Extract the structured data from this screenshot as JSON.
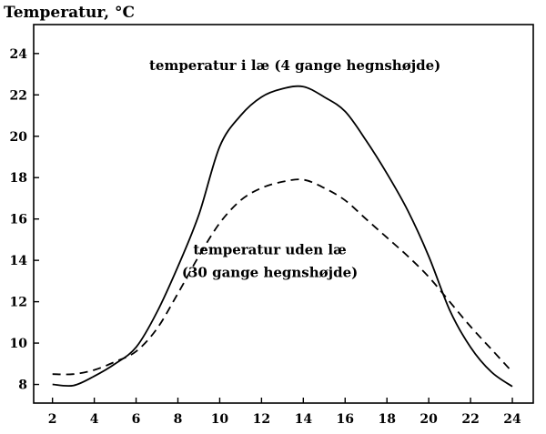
{
  "chart_data": {
    "type": "line",
    "title": "Temperatur, °C",
    "xlabel": "",
    "ylabel": "Temperatur, °C",
    "xlim": [
      1.1,
      25.0
    ],
    "ylim": [
      7.1,
      25.4
    ],
    "xticks": [
      2,
      4,
      6,
      8,
      10,
      12,
      14,
      16,
      18,
      20,
      22,
      24
    ],
    "yticks": [
      8,
      10,
      12,
      14,
      16,
      18,
      20,
      22,
      24
    ],
    "grid": false,
    "legend": "none",
    "series": [
      {
        "name": "temperatur i læ (4 gange hegnshøjde)",
        "style": "solid",
        "x": [
          2,
          3,
          4,
          5,
          6,
          7,
          8,
          9,
          10,
          11,
          12,
          13,
          14,
          15,
          16,
          17,
          18,
          19,
          20,
          21,
          22,
          23,
          24
        ],
        "y": [
          8.0,
          7.95,
          8.4,
          9.0,
          9.8,
          11.5,
          13.7,
          16.2,
          19.5,
          21.0,
          21.9,
          22.3,
          22.4,
          21.9,
          21.2,
          19.8,
          18.2,
          16.4,
          14.2,
          11.6,
          9.8,
          8.6,
          7.9
        ]
      },
      {
        "name": "temperatur uden læ (30 gange hegnshøjde)",
        "style": "dashed",
        "x": [
          2,
          3,
          4,
          5,
          6,
          7,
          8,
          9,
          10,
          11,
          12,
          13,
          14,
          15,
          16,
          17,
          18,
          19,
          20,
          21,
          22,
          23,
          24
        ],
        "y": [
          8.5,
          8.5,
          8.7,
          9.1,
          9.6,
          10.7,
          12.4,
          14.2,
          15.8,
          16.9,
          17.5,
          17.8,
          17.9,
          17.5,
          16.9,
          16.0,
          15.1,
          14.2,
          13.2,
          12.0,
          10.8,
          9.7,
          8.6
        ]
      }
    ],
    "annotations": [
      {
        "text": "temperatur i læ (4 gange hegnshøjde)",
        "at_x": 13.6,
        "at_y": 23.2
      },
      {
        "text": "temperatur uden læ",
        "at_x": 12.4,
        "at_y": 14.3
      },
      {
        "text": "(30 gange hegnshøjde)",
        "at_x": 12.4,
        "at_y": 13.2
      }
    ]
  }
}
